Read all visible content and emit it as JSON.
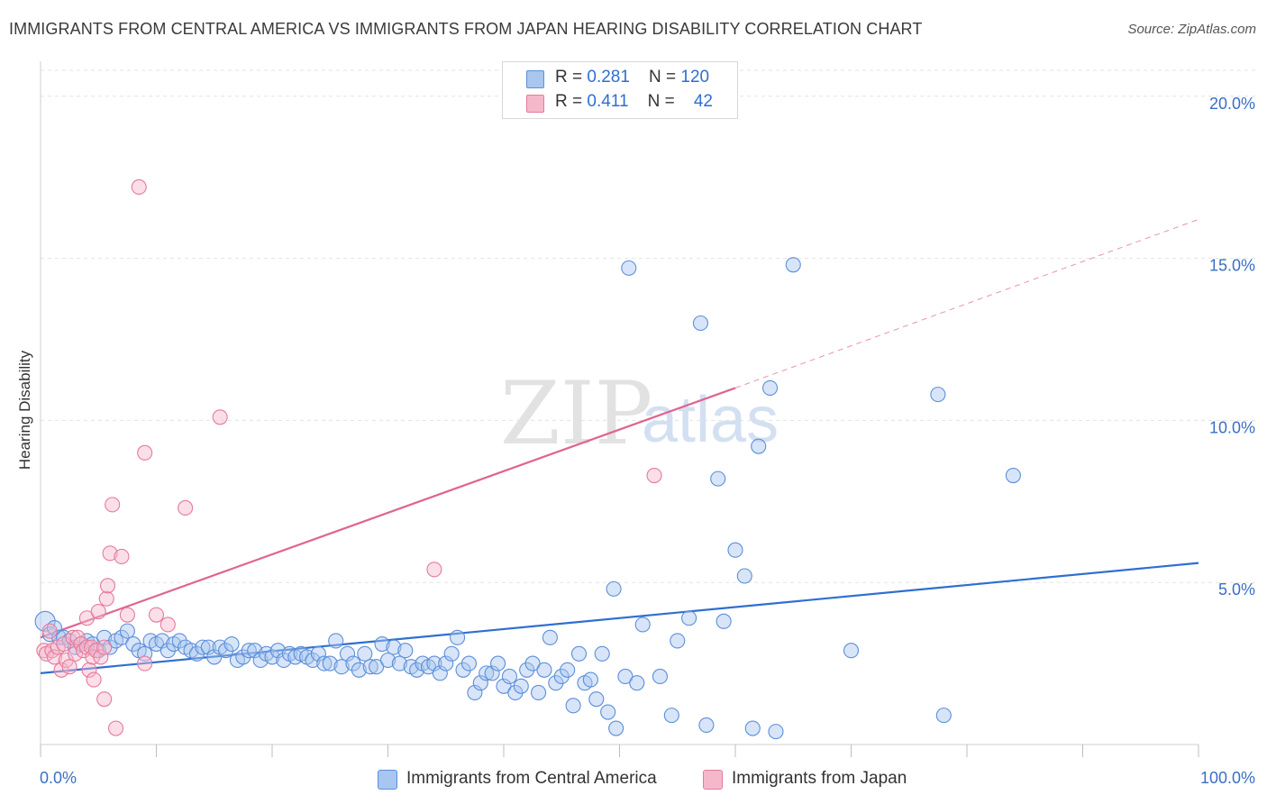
{
  "header": {
    "title": "IMMIGRANTS FROM CENTRAL AMERICA VS IMMIGRANTS FROM JAPAN HEARING DISABILITY CORRELATION CHART",
    "source": "Source: ZipAtlas.com"
  },
  "legend": {
    "rows": [
      {
        "r_label": "R = ",
        "r_value": "0.281",
        "n_label": "N = ",
        "n_value": "120"
      },
      {
        "r_label": "R = ",
        "r_value": "0.411",
        "n_label": "N = ",
        "n_value": "42"
      }
    ]
  },
  "watermark": {
    "zip": "ZIP",
    "atlas": "atlas"
  },
  "colors": {
    "blue_fill": "#a9c6f0",
    "blue_stroke": "#5b8fd9",
    "blue_line": "#2f6fd0",
    "pink_fill": "#f5b8cb",
    "pink_stroke": "#e67a9c",
    "pink_line": "#e0648f",
    "grid": "#e3e3e3",
    "tick_label": "#3a6fc4"
  },
  "chart_data": {
    "type": "scatter",
    "title": "IMMIGRANTS FROM CENTRAL AMERICA VS IMMIGRANTS FROM JAPAN HEARING DISABILITY CORRELATION CHART",
    "xlabel": "",
    "ylabel": "Hearing Disability",
    "xlim": [
      0,
      100
    ],
    "ylim": [
      0,
      20.8
    ],
    "y_ticks": [
      5,
      10,
      15,
      20
    ],
    "y_tick_labels": [
      "5.0%",
      "10.0%",
      "15.0%",
      "20.0%"
    ],
    "x_tick_labels": [
      "0.0%",
      "100.0%"
    ],
    "x_tick_positions": [
      0,
      10,
      20,
      30,
      40,
      50,
      60,
      70,
      80,
      90,
      100
    ],
    "grid": true,
    "legend_position": "top-center",
    "series": [
      {
        "name": "Immigrants from Central America",
        "color": "#5b8fd9",
        "trend": {
          "x": [
            0,
            100
          ],
          "y": [
            2.2,
            5.6
          ]
        },
        "points": [
          [
            0.4,
            3.8
          ],
          [
            0.8,
            3.4
          ],
          [
            1.2,
            3.6
          ],
          [
            1.6,
            3.3
          ],
          [
            2.0,
            3.3
          ],
          [
            2.5,
            3.2
          ],
          [
            3.0,
            3.0
          ],
          [
            3.5,
            3.1
          ],
          [
            4.0,
            3.2
          ],
          [
            4.5,
            3.1
          ],
          [
            5.0,
            2.9
          ],
          [
            5.5,
            3.3
          ],
          [
            6.0,
            3.0
          ],
          [
            6.5,
            3.2
          ],
          [
            7.0,
            3.3
          ],
          [
            7.5,
            3.5
          ],
          [
            8.0,
            3.1
          ],
          [
            8.5,
            2.9
          ],
          [
            9.0,
            2.8
          ],
          [
            9.5,
            3.2
          ],
          [
            10.0,
            3.1
          ],
          [
            10.5,
            3.2
          ],
          [
            11.0,
            2.9
          ],
          [
            11.5,
            3.1
          ],
          [
            12.0,
            3.2
          ],
          [
            12.5,
            3.0
          ],
          [
            13.0,
            2.9
          ],
          [
            13.5,
            2.8
          ],
          [
            14.0,
            3.0
          ],
          [
            14.5,
            3.0
          ],
          [
            15.0,
            2.7
          ],
          [
            15.5,
            3.0
          ],
          [
            16.0,
            2.9
          ],
          [
            16.5,
            3.1
          ],
          [
            17.0,
            2.6
          ],
          [
            17.5,
            2.7
          ],
          [
            18.0,
            2.9
          ],
          [
            18.5,
            2.9
          ],
          [
            19.0,
            2.6
          ],
          [
            19.5,
            2.8
          ],
          [
            20.0,
            2.7
          ],
          [
            20.5,
            2.9
          ],
          [
            21.0,
            2.6
          ],
          [
            21.5,
            2.8
          ],
          [
            22.0,
            2.7
          ],
          [
            22.5,
            2.8
          ],
          [
            23.0,
            2.7
          ],
          [
            23.5,
            2.6
          ],
          [
            24.0,
            2.8
          ],
          [
            24.5,
            2.5
          ],
          [
            25.0,
            2.5
          ],
          [
            25.5,
            3.2
          ],
          [
            26.0,
            2.4
          ],
          [
            26.5,
            2.8
          ],
          [
            27.0,
            2.5
          ],
          [
            27.5,
            2.3
          ],
          [
            28.0,
            2.8
          ],
          [
            28.5,
            2.4
          ],
          [
            29.0,
            2.4
          ],
          [
            29.5,
            3.1
          ],
          [
            30.0,
            2.6
          ],
          [
            30.5,
            3.0
          ],
          [
            31.0,
            2.5
          ],
          [
            31.5,
            2.9
          ],
          [
            32.0,
            2.4
          ],
          [
            32.5,
            2.3
          ],
          [
            33.0,
            2.5
          ],
          [
            33.5,
            2.4
          ],
          [
            34.0,
            2.5
          ],
          [
            34.5,
            2.2
          ],
          [
            35.0,
            2.5
          ],
          [
            35.5,
            2.8
          ],
          [
            36.0,
            3.3
          ],
          [
            36.5,
            2.3
          ],
          [
            37.0,
            2.5
          ],
          [
            37.5,
            1.6
          ],
          [
            38.0,
            1.9
          ],
          [
            38.5,
            2.2
          ],
          [
            39.0,
            2.2
          ],
          [
            39.5,
            2.5
          ],
          [
            40.0,
            1.8
          ],
          [
            40.5,
            2.1
          ],
          [
            41.0,
            1.6
          ],
          [
            41.5,
            1.8
          ],
          [
            42.0,
            2.3
          ],
          [
            42.5,
            2.5
          ],
          [
            43.0,
            1.6
          ],
          [
            43.5,
            2.3
          ],
          [
            44.0,
            3.3
          ],
          [
            44.5,
            1.9
          ],
          [
            45.0,
            2.1
          ],
          [
            45.5,
            2.3
          ],
          [
            46.0,
            1.2
          ],
          [
            46.5,
            2.8
          ],
          [
            47.0,
            1.9
          ],
          [
            47.5,
            2.0
          ],
          [
            48.0,
            1.4
          ],
          [
            48.5,
            2.8
          ],
          [
            49.0,
            1.0
          ],
          [
            49.5,
            4.8
          ],
          [
            50.5,
            2.1
          ],
          [
            51.5,
            1.9
          ],
          [
            52.0,
            3.7
          ],
          [
            53.5,
            2.1
          ],
          [
            54.5,
            0.9
          ],
          [
            55.0,
            3.2
          ],
          [
            56.0,
            3.9
          ],
          [
            57.5,
            0.6
          ],
          [
            60.0,
            6.0
          ],
          [
            60.8,
            5.2
          ],
          [
            63.0,
            11.0
          ],
          [
            49.7,
            0.5
          ],
          [
            50.8,
            14.7
          ],
          [
            57.0,
            13.0
          ],
          [
            58.5,
            8.2
          ],
          [
            62.0,
            9.2
          ],
          [
            65.0,
            14.8
          ],
          [
            70.0,
            2.9
          ],
          [
            77.5,
            10.8
          ],
          [
            78.0,
            0.9
          ],
          [
            84.0,
            8.3
          ],
          [
            63.5,
            0.4
          ],
          [
            59.0,
            3.8
          ],
          [
            61.5,
            0.5
          ]
        ]
      },
      {
        "name": "Immigrants from Japan",
        "color": "#e67a9c",
        "trend": {
          "x": [
            0,
            60
          ],
          "y": [
            3.3,
            11.0
          ]
        },
        "trend_extension": {
          "x": [
            60,
            100
          ],
          "y": [
            11.0,
            16.2
          ]
        },
        "points": [
          [
            0.3,
            2.9
          ],
          [
            0.5,
            2.8
          ],
          [
            0.8,
            3.5
          ],
          [
            1.0,
            2.9
          ],
          [
            1.2,
            2.7
          ],
          [
            1.5,
            3.0
          ],
          [
            1.8,
            2.3
          ],
          [
            2.0,
            3.1
          ],
          [
            2.2,
            2.6
          ],
          [
            2.5,
            2.4
          ],
          [
            2.8,
            3.3
          ],
          [
            3.0,
            2.8
          ],
          [
            3.2,
            3.3
          ],
          [
            3.5,
            3.1
          ],
          [
            3.7,
            2.9
          ],
          [
            4.0,
            3.0
          ],
          [
            4.0,
            3.9
          ],
          [
            4.2,
            2.3
          ],
          [
            4.4,
            3.0
          ],
          [
            4.5,
            2.7
          ],
          [
            4.6,
            2.0
          ],
          [
            4.8,
            2.9
          ],
          [
            5.0,
            4.1
          ],
          [
            5.2,
            2.7
          ],
          [
            5.5,
            3.0
          ],
          [
            5.5,
            1.4
          ],
          [
            5.7,
            4.5
          ],
          [
            5.8,
            4.9
          ],
          [
            6.0,
            5.9
          ],
          [
            6.2,
            7.4
          ],
          [
            6.5,
            0.5
          ],
          [
            7.0,
            5.8
          ],
          [
            7.5,
            4.0
          ],
          [
            8.5,
            17.2
          ],
          [
            9.0,
            9.0
          ],
          [
            9.0,
            2.5
          ],
          [
            10.0,
            4.0
          ],
          [
            11.0,
            3.7
          ],
          [
            12.5,
            7.3
          ],
          [
            15.5,
            10.1
          ],
          [
            34.0,
            5.4
          ],
          [
            53.0,
            8.3
          ]
        ]
      }
    ]
  },
  "bottom_legend": [
    {
      "label": "Immigrants from Central America"
    },
    {
      "label": "Immigrants from Japan"
    }
  ]
}
